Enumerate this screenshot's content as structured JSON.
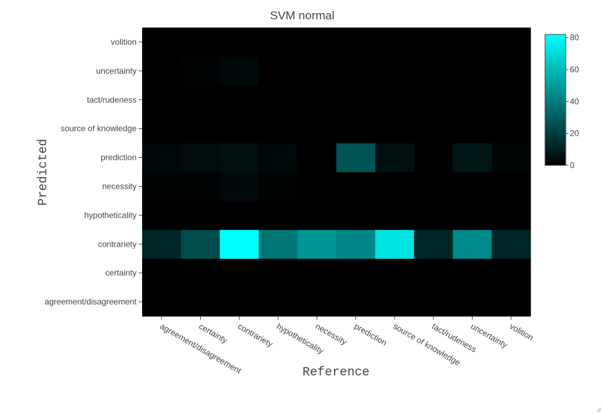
{
  "chart_data": {
    "type": "heatmap",
    "title": "SVM normal",
    "xlabel": "Reference",
    "ylabel": "Predicted",
    "x_categories": [
      "agreement/disagreement",
      "certainty",
      "contrariety",
      "hypotheticality",
      "necessity",
      "prediction",
      "source of knowledge",
      "tact/rudeness",
      "uncertainty",
      "volition"
    ],
    "y_categories": [
      "agreement/disagreement",
      "certainty",
      "contrariety",
      "hypotheticality",
      "necessity",
      "prediction",
      "source of knowledge",
      "tact/rudeness",
      "uncertainty",
      "volition"
    ],
    "z": [
      [
        0,
        0,
        0,
        0,
        0,
        0,
        0,
        0,
        0,
        0
      ],
      [
        0,
        0,
        0,
        0,
        0,
        0,
        0,
        0,
        0,
        0
      ],
      [
        12,
        24,
        82,
        38,
        48,
        43,
        73,
        12,
        44,
        12
      ],
      [
        0,
        0,
        0,
        0,
        0,
        0,
        0,
        0,
        0,
        0
      ],
      [
        1,
        1,
        3,
        1,
        0,
        0,
        0,
        0,
        0,
        0
      ],
      [
        3,
        4,
        5,
        3,
        0,
        27,
        5,
        0,
        7,
        2
      ],
      [
        0,
        0,
        0,
        0,
        0,
        0,
        0,
        0,
        0,
        0
      ],
      [
        0,
        0,
        0,
        0,
        0,
        0,
        0,
        0,
        0,
        0
      ],
      [
        0,
        1,
        3,
        0,
        0,
        0,
        0,
        0,
        0,
        0
      ],
      [
        0,
        0,
        0,
        0,
        0,
        0,
        0,
        0,
        0,
        0
      ]
    ],
    "zlim": [
      0,
      82
    ],
    "colorscale": [
      "#000000",
      "#00ffff"
    ],
    "colorbar_ticks": [
      0,
      20,
      40,
      60,
      80
    ],
    "grid": false
  }
}
